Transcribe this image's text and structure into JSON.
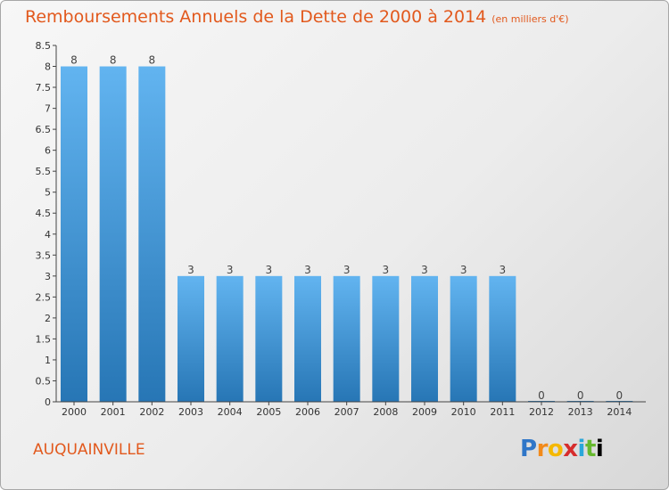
{
  "title": "Remboursements Annuels de la Dette de 2000 à 2014",
  "subtitle": "(en milliers d'€)",
  "commune": "AUQUAINVILLE",
  "logo": [
    "P",
    "r",
    "o",
    "x",
    "i",
    "t",
    "i"
  ],
  "colors": {
    "title": "#e2591d",
    "bar_light": "#5fb0ee",
    "bar_dark": "#2a79b8"
  },
  "chart_data": {
    "type": "bar",
    "title": "Remboursements Annuels de la Dette de 2000 à 2014",
    "subtitle": "(en milliers d'€)",
    "categories": [
      "2000",
      "2001",
      "2002",
      "2003",
      "2004",
      "2005",
      "2006",
      "2007",
      "2008",
      "2009",
      "2010",
      "2011",
      "2012",
      "2013",
      "2014"
    ],
    "values": [
      8,
      8,
      8,
      3,
      3,
      3,
      3,
      3,
      3,
      3,
      3,
      3,
      0,
      0,
      0
    ],
    "y_ticks": [
      "0",
      "0.5",
      "1",
      "1.5",
      "2",
      "2.5",
      "3",
      "3.5",
      "4",
      "4.5",
      "5",
      "5.5",
      "6",
      "6.5",
      "7",
      "7.5",
      "8",
      "8.5"
    ],
    "ylim": [
      0,
      8.5
    ],
    "xlabel": "",
    "ylabel": "",
    "grid": false,
    "legend": "none"
  }
}
